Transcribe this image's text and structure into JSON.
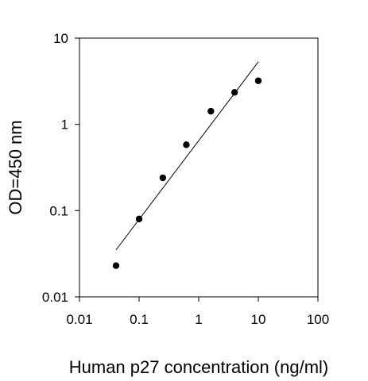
{
  "chart_data": {
    "type": "scatter",
    "title": "",
    "xlabel": "Human p27 concentration (ng/ml)",
    "ylabel": "OD=450 nm",
    "x_scale": "log",
    "y_scale": "log",
    "xlim": [
      0.01,
      100
    ],
    "ylim": [
      0.01,
      10
    ],
    "x_ticks": [
      "0.01",
      "0.1",
      "1",
      "10",
      "100"
    ],
    "y_ticks": [
      "0.01",
      "0.1",
      "1",
      "10"
    ],
    "grid": false,
    "legend": "none",
    "points": [
      {
        "x": 0.041,
        "y": 0.023
      },
      {
        "x": 0.1,
        "y": 0.08
      },
      {
        "x": 0.25,
        "y": 0.24
      },
      {
        "x": 0.62,
        "y": 0.58
      },
      {
        "x": 1.6,
        "y": 1.42
      },
      {
        "x": 4.0,
        "y": 2.35
      },
      {
        "x": 10.0,
        "y": 3.2
      }
    ],
    "fit_line": {
      "x": [
        0.041,
        10.0
      ],
      "y": [
        0.035,
        5.3
      ]
    },
    "colors": {
      "marker": "#000000",
      "line": "#000000",
      "axis": "#000000"
    }
  }
}
